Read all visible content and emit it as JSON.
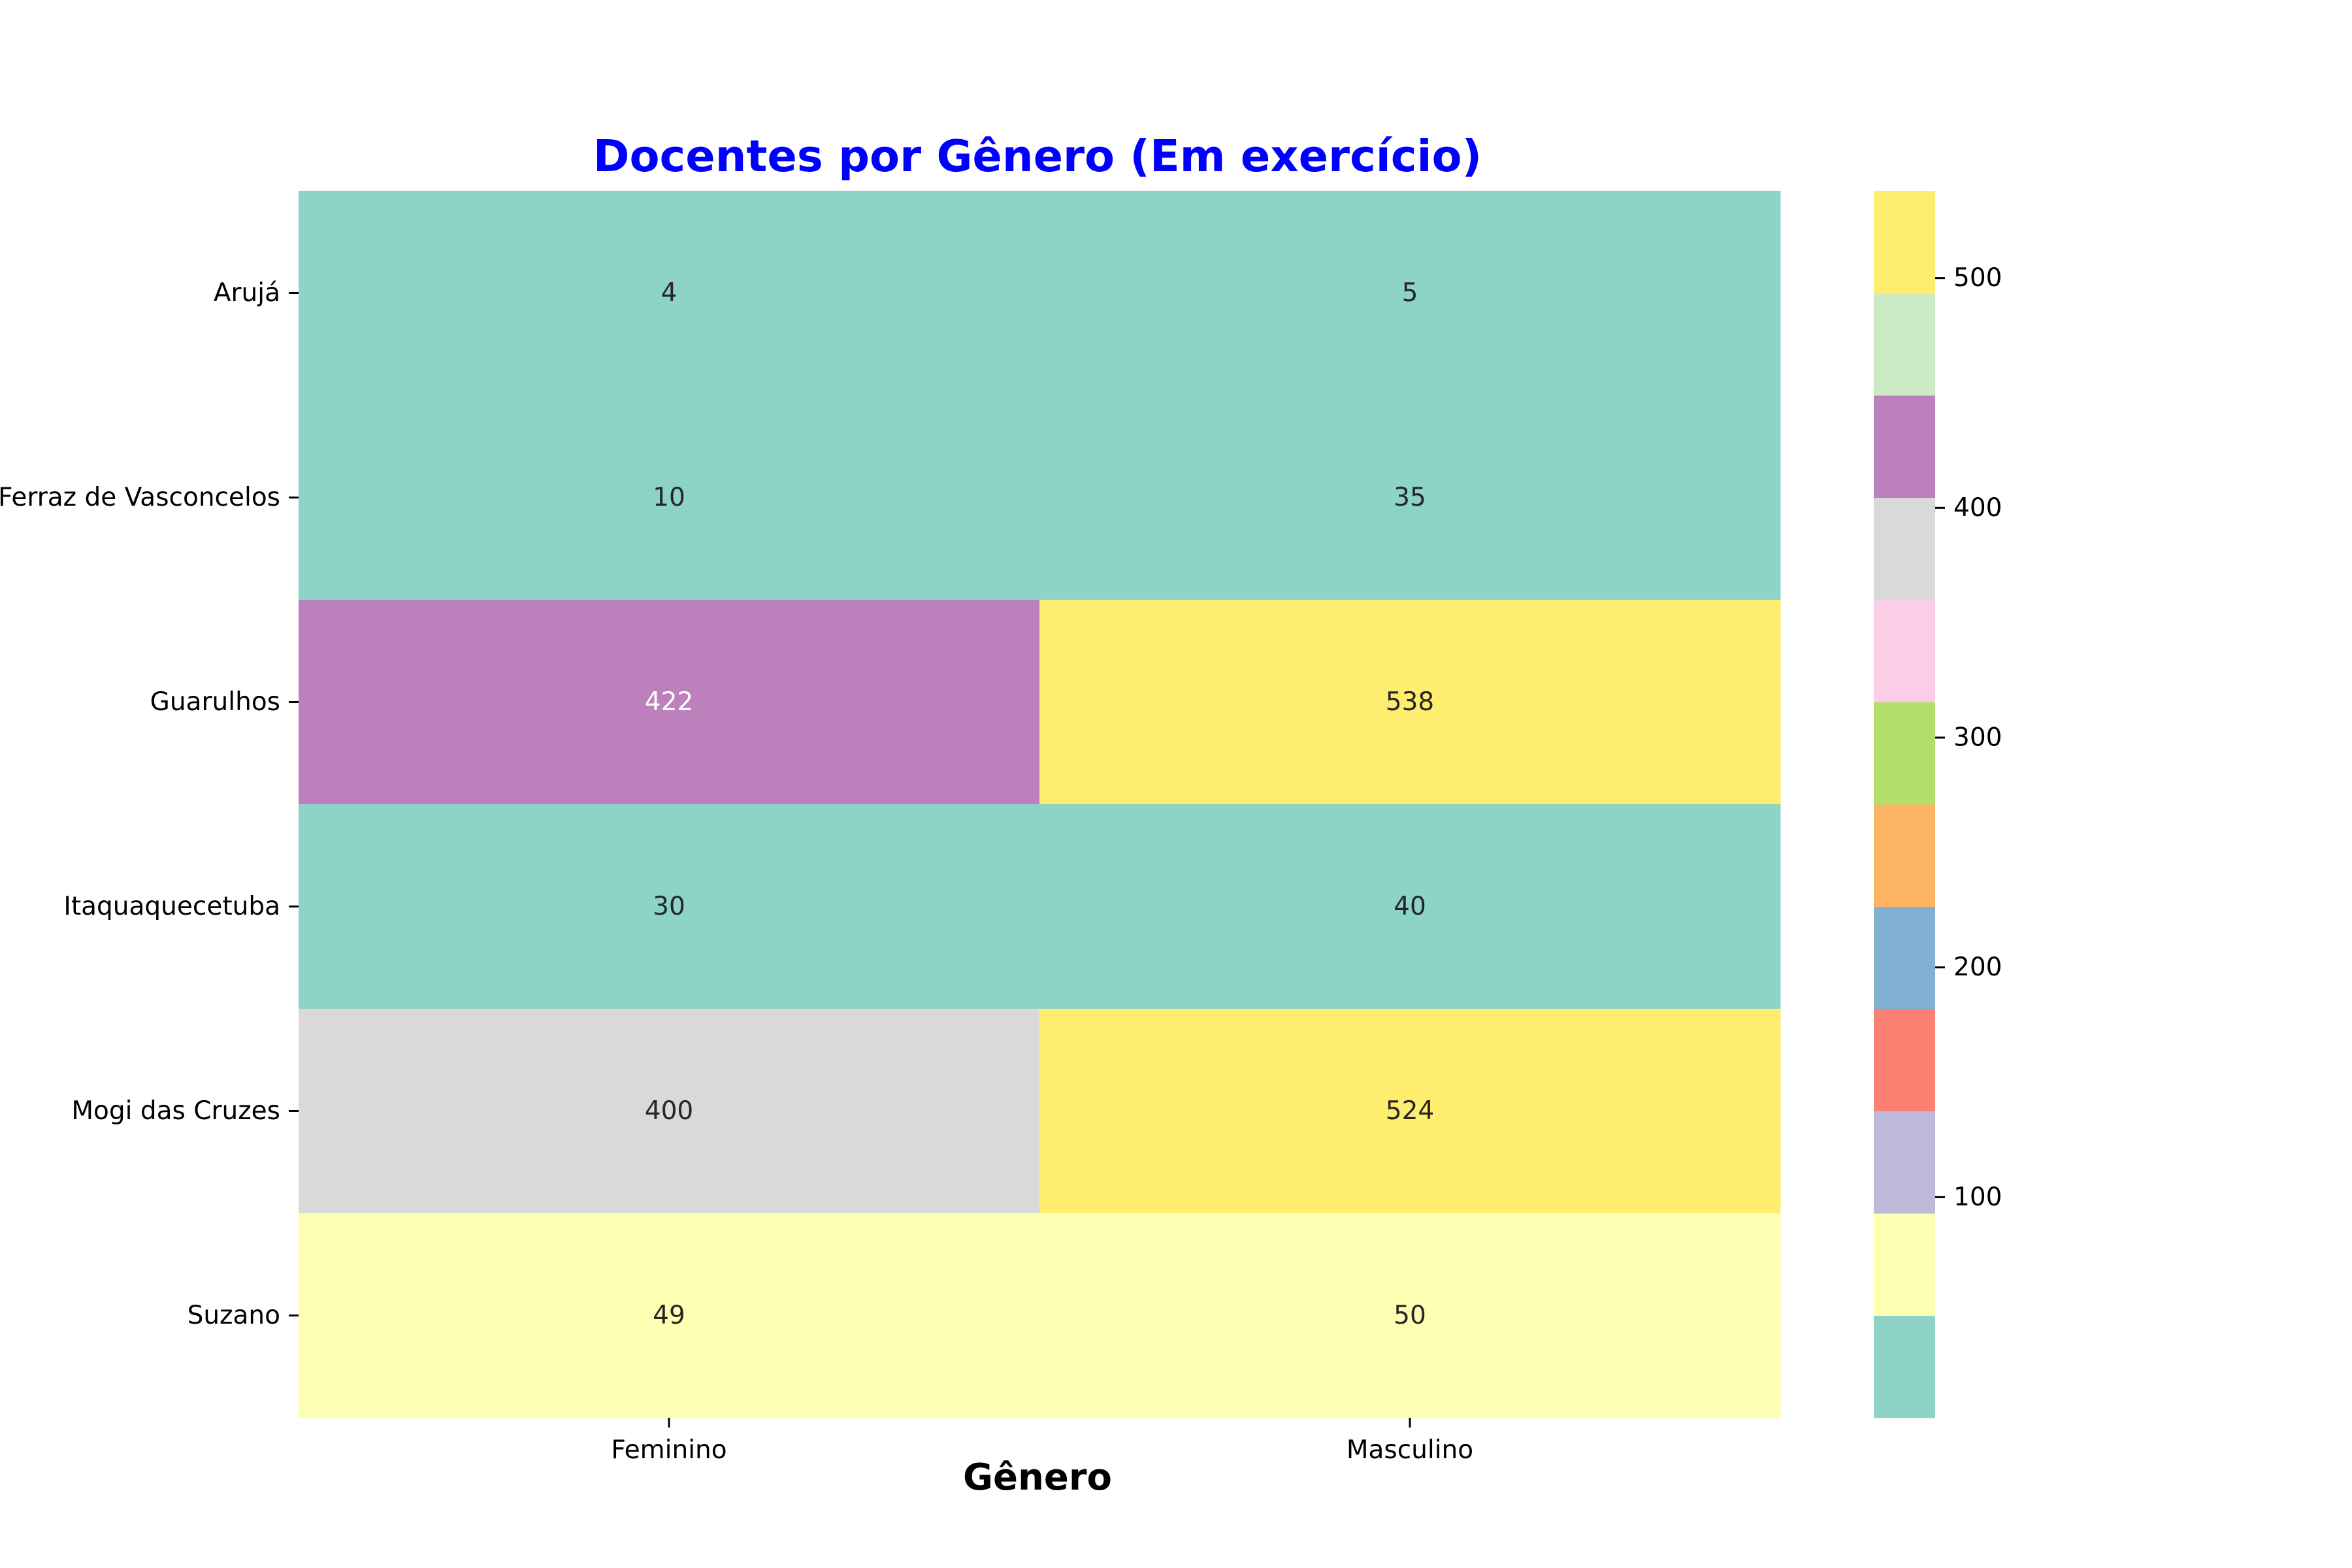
{
  "chart_data": {
    "type": "heatmap",
    "title": "Docentes por Gênero (Em exercício)",
    "title_color": "#0000ff",
    "xlabel": "Gênero",
    "ylabel": "",
    "x_categories": [
      "Feminino",
      "Masculino"
    ],
    "y_categories": [
      "Arujá",
      "Ferraz de Vasconcelos",
      "Guarulhos",
      "Itaquaquecetuba",
      "Mogi das Cruzes",
      "Suzano"
    ],
    "values": [
      [
        4,
        5
      ],
      [
        10,
        35
      ],
      [
        422,
        538
      ],
      [
        30,
        40
      ],
      [
        400,
        524
      ],
      [
        49,
        50
      ]
    ],
    "colormap": "Set3",
    "colormap_colors": [
      "#8dd3c7",
      "#ffffb3",
      "#bebada",
      "#fb8072",
      "#80b1d3",
      "#fdb462",
      "#b3de69",
      "#fccde5",
      "#d9d9d9",
      "#bc80bd",
      "#ccebc5",
      "#ffed6f"
    ],
    "vmin": 4,
    "vmax": 538,
    "colorbar_ticks": [
      100,
      200,
      300,
      400,
      500
    ],
    "legend": "colorbar-right",
    "grid": false
  }
}
